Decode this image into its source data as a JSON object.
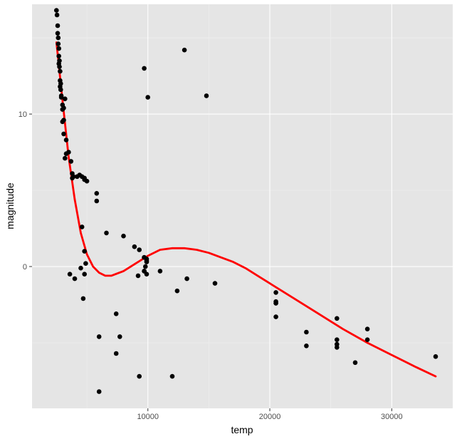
{
  "chart_data": {
    "type": "scatter",
    "title": "",
    "xlabel": "temp",
    "ylabel": "magnitude",
    "xlim": [
      500,
      35000
    ],
    "ylim": [
      -9.3,
      17.2
    ],
    "x_ticks": [
      10000,
      20000,
      30000
    ],
    "x_tick_labels": [
      "10000",
      "20000",
      "30000"
    ],
    "y_ticks": [
      0,
      10
    ],
    "y_tick_labels": [
      "0",
      "10"
    ],
    "grid": true,
    "legend": "none",
    "colors": {
      "panel_background": "#e5e5e5",
      "grid_major": "#ffffff",
      "grid_minor": "#f0f0f0",
      "points": "#000000",
      "smooth_line": "#ff0000"
    },
    "series": [
      {
        "kind": "points",
        "x": [
          2500,
          2550,
          2600,
          2600,
          2650,
          2650,
          2700,
          2700,
          2700,
          2750,
          2750,
          2800,
          2800,
          2800,
          2850,
          2850,
          2900,
          2900,
          3000,
          3000,
          3100,
          3100,
          3200,
          3300,
          3100,
          3000,
          3300,
          3200,
          3500,
          3700,
          3800,
          3800,
          3900,
          4200,
          4400,
          4600,
          4800,
          4800,
          5000,
          5800,
          5800,
          4600,
          6600,
          8000,
          8900,
          9300,
          9700,
          9700,
          9900,
          9900,
          9900,
          9800,
          9700,
          9700,
          9900,
          11000,
          9200,
          12400,
          13200,
          15500,
          4800,
          3600,
          4900,
          4500,
          4800,
          4000,
          4700,
          7400,
          7700,
          6000,
          7400,
          6000,
          12000,
          9300,
          20500,
          20500,
          20500,
          20500,
          20500,
          23000,
          23000,
          25500,
          25500,
          25500,
          25500,
          28000,
          28000,
          27000,
          33600,
          9700,
          10000,
          13000,
          14800
        ],
        "y": [
          16.8,
          16.5,
          15.8,
          15.3,
          15,
          14.6,
          14.3,
          13.8,
          13.3,
          13.5,
          13.1,
          12.8,
          12.2,
          11.8,
          12,
          11.6,
          11.1,
          11.2,
          10.6,
          10.3,
          10.4,
          9.6,
          11,
          8.3,
          8.7,
          9.5,
          7.4,
          7.1,
          7.5,
          6.9,
          6.1,
          5.8,
          5.9,
          5.9,
          6,
          5.9,
          5.8,
          5.7,
          5.6,
          4.8,
          4.3,
          2.6,
          2.2,
          2,
          1.3,
          1.1,
          0.6,
          0.6,
          0.5,
          0.4,
          0.3,
          0,
          -0.3,
          -0.3,
          -0.5,
          -0.3,
          -0.6,
          -1.6,
          -0.8,
          -1.1,
          1,
          -0.5,
          0.2,
          -0.1,
          -0.5,
          -0.8,
          -2.1,
          -3.1,
          -4.6,
          -4.6,
          -5.7,
          -8.2,
          -7.2,
          -7.2,
          -1.7,
          -2.3,
          -2.4,
          -2.4,
          -3.3,
          -4.3,
          -5.2,
          -3.4,
          -4.8,
          -5.1,
          -5.3,
          -4.1,
          -4.8,
          -6.3,
          -5.9,
          13,
          11.1,
          14.2,
          11.2
        ]
      },
      {
        "kind": "smooth",
        "x": [
          2500,
          3000,
          3500,
          4000,
          4500,
          5000,
          5500,
          6000,
          6500,
          7000,
          8000,
          9000,
          10000,
          11000,
          12000,
          13000,
          14000,
          15000,
          16000,
          17000,
          18000,
          19000,
          20000,
          22000,
          24000,
          26000,
          28000,
          30000,
          32000,
          33600
        ],
        "y": [
          14.7,
          10.9,
          7.2,
          4.4,
          2.2,
          0.8,
          0,
          -0.4,
          -0.6,
          -0.6,
          -0.3,
          0.2,
          0.7,
          1.1,
          1.2,
          1.2,
          1.1,
          0.9,
          0.6,
          0.3,
          -0.1,
          -0.6,
          -1.1,
          -2.1,
          -3.1,
          -4.1,
          -5,
          -5.8,
          -6.6,
          -7.2
        ]
      }
    ]
  }
}
